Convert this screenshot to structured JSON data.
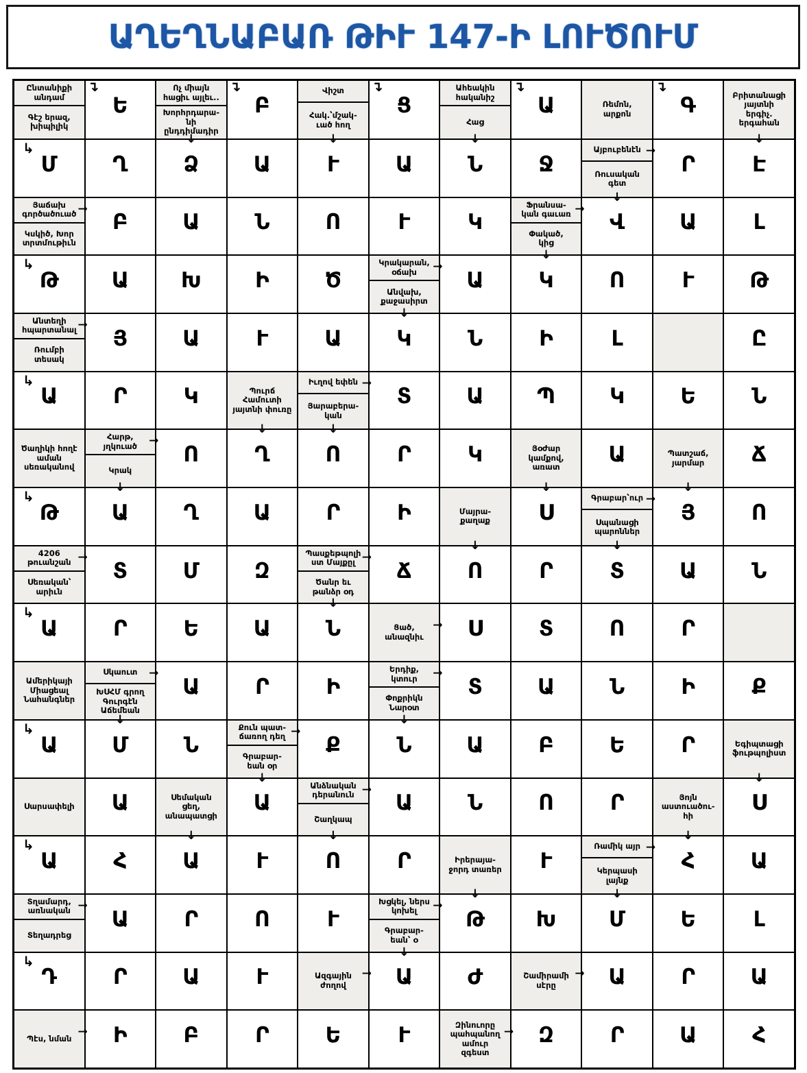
{
  "title": "ԱՂԵՂՆԱԲԱՌ ԹԻՒ 147-Ի ԼՈՒԾՈՒՄ",
  "colors": {
    "accent": "#1d56a4",
    "clue_bg": "#efeeeb",
    "grid_line": "#000000"
  },
  "icons": {
    "dn": "↓",
    "lt": "→",
    "lm": "→",
    "cr": "↳",
    "cd": "↴"
  },
  "grid": {
    "rows": 17,
    "cols": 11,
    "cells": [
      [
        {
          "t": "C2",
          "top": "Ընտանիքի\nանդամ",
          "bot": "Գէշ երազ,\nխիպիլիկ"
        },
        {
          "t": "L",
          "v": "Ե",
          "a": [
            "cd"
          ]
        },
        {
          "t": "C2",
          "top": "Ոչ միայն\nհացիւ այլեւ..",
          "bot": "Խորհրդարա-\nնի\nընդդիմադիր"
        },
        {
          "t": "L",
          "v": "Բ",
          "a": [
            "cd"
          ]
        },
        {
          "t": "C2",
          "top": "Վիշտ",
          "bot": "Հակ.՝մշակ-\nւած հող"
        },
        {
          "t": "L",
          "v": "Ց",
          "a": [
            "cd"
          ]
        },
        {
          "t": "C2",
          "top": "Ահեակին\nհականիշ",
          "bot": "Հաց"
        },
        {
          "t": "L",
          "v": "Ա",
          "a": [
            "cd"
          ]
        },
        {
          "t": "C1",
          "txt": "Ռեմոն,\nարքոն"
        },
        {
          "t": "L",
          "v": "Գ",
          "a": [
            "cd"
          ]
        },
        {
          "t": "C1",
          "txt": "Բրիտանացի\nյայտնի\nերգիչ.\nերգահան"
        }
      ],
      [
        {
          "t": "L",
          "v": "Մ",
          "a": [
            "cr"
          ]
        },
        {
          "t": "L",
          "v": "Ղ"
        },
        {
          "t": "L",
          "v": "Ձ",
          "a": [
            "dn"
          ]
        },
        {
          "t": "L",
          "v": "Ա"
        },
        {
          "t": "L",
          "v": "Ւ",
          "a": [
            "dn"
          ]
        },
        {
          "t": "L",
          "v": "Ա"
        },
        {
          "t": "L",
          "v": "Ն",
          "a": [
            "dn"
          ]
        },
        {
          "t": "L",
          "v": "Ջ"
        },
        {
          "t": "C2",
          "top": "Այբուբենէն",
          "bot": "Ռուսական\nգետ"
        },
        {
          "t": "L",
          "v": "Ր",
          "a": [
            "lt"
          ]
        },
        {
          "t": "L",
          "v": "Է",
          "a": [
            "dn"
          ]
        }
      ],
      [
        {
          "t": "C2",
          "top": "Յաճախ\nգործածուած",
          "bot": "Կսկիծ, Խոր\nտրտմութիւն"
        },
        {
          "t": "L",
          "v": "Բ",
          "a": [
            "lt"
          ]
        },
        {
          "t": "L",
          "v": "Ա"
        },
        {
          "t": "L",
          "v": "Ն"
        },
        {
          "t": "L",
          "v": "Ո"
        },
        {
          "t": "L",
          "v": "Ւ"
        },
        {
          "t": "L",
          "v": "Կ"
        },
        {
          "t": "C2",
          "top": "Ֆրանսա-\nկան գաւառ",
          "bot": "Փակած,\nկից"
        },
        {
          "t": "L",
          "v": "Վ",
          "a": [
            "lt",
            "dn"
          ]
        },
        {
          "t": "L",
          "v": "Ա"
        },
        {
          "t": "L",
          "v": "Լ"
        }
      ],
      [
        {
          "t": "L",
          "v": "Թ",
          "a": [
            "cr"
          ]
        },
        {
          "t": "L",
          "v": "Ա"
        },
        {
          "t": "L",
          "v": "Խ"
        },
        {
          "t": "L",
          "v": "Ի"
        },
        {
          "t": "L",
          "v": "Ծ"
        },
        {
          "t": "C2",
          "top": "Կրակարան,\nօճախ",
          "bot": "Անվախ,\nքաջասիրտ"
        },
        {
          "t": "L",
          "v": "Ա",
          "a": [
            "lt"
          ]
        },
        {
          "t": "L",
          "v": "Կ",
          "a": [
            "dn"
          ]
        },
        {
          "t": "L",
          "v": "Ո"
        },
        {
          "t": "L",
          "v": "Ւ"
        },
        {
          "t": "L",
          "v": "Թ"
        }
      ],
      [
        {
          "t": "C2",
          "top": "Անտեղի\nհպարտանալ",
          "bot": "Ռումբի\nտեսակ"
        },
        {
          "t": "L",
          "v": "Յ",
          "a": [
            "lt"
          ]
        },
        {
          "t": "L",
          "v": "Ա"
        },
        {
          "t": "L",
          "v": "Ւ"
        },
        {
          "t": "L",
          "v": "Ա"
        },
        {
          "t": "L",
          "v": "Կ",
          "a": [
            "dn"
          ]
        },
        {
          "t": "L",
          "v": "Ն"
        },
        {
          "t": "L",
          "v": "Ի"
        },
        {
          "t": "L",
          "v": "Լ"
        },
        {
          "t": "E"
        },
        {
          "t": "L",
          "v": "Ը"
        }
      ],
      [
        {
          "t": "L",
          "v": "Ա",
          "a": [
            "cr"
          ]
        },
        {
          "t": "L",
          "v": "Ր"
        },
        {
          "t": "L",
          "v": "Կ"
        },
        {
          "t": "C1",
          "txt": "Պուրճ\nՀամուտի\nյայտնի փուռը"
        },
        {
          "t": "C2",
          "top": "Իւղով եփեն",
          "bot": "Յարաբերա-\nկան"
        },
        {
          "t": "L",
          "v": "Տ",
          "a": [
            "lt"
          ]
        },
        {
          "t": "L",
          "v": "Ա"
        },
        {
          "t": "L",
          "v": "Պ"
        },
        {
          "t": "L",
          "v": "Կ"
        },
        {
          "t": "L",
          "v": "Ե"
        },
        {
          "t": "L",
          "v": "Ն"
        }
      ],
      [
        {
          "t": "C1",
          "txt": "Ծաղիկի հողէ\nաման\nսեռականով"
        },
        {
          "t": "C2",
          "top": "Հարթ,\nյղկուած",
          "bot": "Կրակ"
        },
        {
          "t": "L",
          "v": "Ո",
          "a": [
            "lt"
          ]
        },
        {
          "t": "L",
          "v": "Ղ",
          "a": [
            "dn"
          ]
        },
        {
          "t": "L",
          "v": "Ո",
          "a": [
            "dn"
          ]
        },
        {
          "t": "L",
          "v": "Ր"
        },
        {
          "t": "L",
          "v": "Կ"
        },
        {
          "t": "C1",
          "txt": "Յօժար\nկամքով,\nառատ"
        },
        {
          "t": "L",
          "v": "Ա"
        },
        {
          "t": "C1",
          "txt": "Պատշաճ,\nյարմար"
        },
        {
          "t": "L",
          "v": "Ճ"
        }
      ],
      [
        {
          "t": "L",
          "v": "Թ",
          "a": [
            "cr"
          ]
        },
        {
          "t": "L",
          "v": "Ա",
          "a": [
            "dn"
          ]
        },
        {
          "t": "L",
          "v": "Ղ"
        },
        {
          "t": "L",
          "v": "Ա"
        },
        {
          "t": "L",
          "v": "Ր"
        },
        {
          "t": "L",
          "v": "Ի"
        },
        {
          "t": "C1",
          "txt": "Մայրա-\nքաղաք"
        },
        {
          "t": "L",
          "v": "Ս",
          "a": [
            "dn"
          ]
        },
        {
          "t": "C2",
          "top": "Գրաբար՝ուր",
          "bot": "Սպանացի\nպարոններ"
        },
        {
          "t": "L",
          "v": "Յ",
          "a": [
            "lt",
            "dn"
          ]
        },
        {
          "t": "L",
          "v": "Ո"
        }
      ],
      [
        {
          "t": "C2",
          "top": "4206\nթուանշան",
          "bot": "Սեռական՝\nարիւն"
        },
        {
          "t": "L",
          "v": "Տ",
          "a": [
            "lt"
          ]
        },
        {
          "t": "L",
          "v": "Մ"
        },
        {
          "t": "L",
          "v": "Զ"
        },
        {
          "t": "C2",
          "top": "Պասքեթպոլի\nստ Մայքըլ",
          "bot": "Ծանր եւ\nթանձր օդ"
        },
        {
          "t": "L",
          "v": "Ճ",
          "a": [
            "lt"
          ]
        },
        {
          "t": "L",
          "v": "Ո",
          "a": [
            "dn"
          ]
        },
        {
          "t": "L",
          "v": "Ր"
        },
        {
          "t": "L",
          "v": "Տ",
          "a": [
            "dn"
          ]
        },
        {
          "t": "L",
          "v": "Ա"
        },
        {
          "t": "L",
          "v": "Ն"
        }
      ],
      [
        {
          "t": "L",
          "v": "Ա",
          "a": [
            "cr"
          ]
        },
        {
          "t": "L",
          "v": "Ր"
        },
        {
          "t": "L",
          "v": "Ե"
        },
        {
          "t": "L",
          "v": "Ա"
        },
        {
          "t": "L",
          "v": "Ն",
          "a": [
            "dn"
          ]
        },
        {
          "t": "C1",
          "txt": "Ցած,\nանազնիւ"
        },
        {
          "t": "L",
          "v": "Ս",
          "a": [
            "lm"
          ]
        },
        {
          "t": "L",
          "v": "Տ"
        },
        {
          "t": "L",
          "v": "Ո"
        },
        {
          "t": "L",
          "v": "Ր"
        },
        {
          "t": "E"
        }
      ],
      [
        {
          "t": "C1",
          "txt": "Ամերիկայի\nՄիացեալ\nՆահանգներ"
        },
        {
          "t": "C2",
          "top": "Սկաուտ",
          "bot": "ԽՍՀՄ գրող\nԳուրգէն\nԱճեմեան"
        },
        {
          "t": "L",
          "v": "Ա",
          "a": [
            "lt"
          ]
        },
        {
          "t": "L",
          "v": "Ր"
        },
        {
          "t": "L",
          "v": "Ի"
        },
        {
          "t": "C2",
          "top": "Երդիք,\nկտուր",
          "bot": "Փոքրիկն\nՆարօտ"
        },
        {
          "t": "L",
          "v": "Տ",
          "a": [
            "lt"
          ]
        },
        {
          "t": "L",
          "v": "Ա"
        },
        {
          "t": "L",
          "v": "Ն"
        },
        {
          "t": "L",
          "v": "Ի"
        },
        {
          "t": "L",
          "v": "Ք"
        }
      ],
      [
        {
          "t": "L",
          "v": "Ա",
          "a": [
            "cr"
          ]
        },
        {
          "t": "L",
          "v": "Մ",
          "a": [
            "dn"
          ]
        },
        {
          "t": "L",
          "v": "Ն"
        },
        {
          "t": "C2",
          "top": "Քուն պատ-\nճառող դեղ",
          "bot": "Գրաբար-\nեան օր"
        },
        {
          "t": "L",
          "v": "Ք",
          "a": [
            "lt"
          ]
        },
        {
          "t": "L",
          "v": "Ն",
          "a": [
            "dn"
          ]
        },
        {
          "t": "L",
          "v": "Ա"
        },
        {
          "t": "L",
          "v": "Բ"
        },
        {
          "t": "L",
          "v": "Ե"
        },
        {
          "t": "L",
          "v": "Ր"
        },
        {
          "t": "C1",
          "txt": "Եգիպտացի\nֆութպոլիստ"
        }
      ],
      [
        {
          "t": "C1",
          "txt": "Սարսափելի"
        },
        {
          "t": "L",
          "v": "Ա"
        },
        {
          "t": "C1",
          "txt": "Սեմական\nցեղ,\nանապատցի"
        },
        {
          "t": "L",
          "v": "Ա",
          "a": [
            "dn"
          ]
        },
        {
          "t": "C2",
          "top": "Անձնական\nդերանուն",
          "bot": "Շաղկապ"
        },
        {
          "t": "L",
          "v": "Ա",
          "a": [
            "lt"
          ]
        },
        {
          "t": "L",
          "v": "Ն"
        },
        {
          "t": "L",
          "v": "Ո"
        },
        {
          "t": "L",
          "v": "Ր"
        },
        {
          "t": "C1",
          "txt": "Յոյն\nաստուածու-\nհի"
        },
        {
          "t": "L",
          "v": "Ս",
          "a": [
            "dn"
          ]
        }
      ],
      [
        {
          "t": "L",
          "v": "Ա",
          "a": [
            "cr"
          ]
        },
        {
          "t": "L",
          "v": "Հ"
        },
        {
          "t": "L",
          "v": "Ա",
          "a": [
            "dn"
          ]
        },
        {
          "t": "L",
          "v": "Ւ"
        },
        {
          "t": "L",
          "v": "Ո",
          "a": [
            "dn"
          ]
        },
        {
          "t": "L",
          "v": "Ր"
        },
        {
          "t": "C1",
          "txt": "Իրերայա-\nջորդ տառեր"
        },
        {
          "t": "L",
          "v": "Ւ"
        },
        {
          "t": "C2",
          "top": "Ռամիկ այր",
          "bot": "Կերպասի\nլայնք"
        },
        {
          "t": "L",
          "v": "Հ",
          "a": [
            "lt",
            "dn"
          ]
        },
        {
          "t": "L",
          "v": "Ա"
        }
      ],
      [
        {
          "t": "C2",
          "top": "Տղամարդ,\nառնական",
          "bot": "Տեղադրեց"
        },
        {
          "t": "L",
          "v": "Ա",
          "a": [
            "lt"
          ]
        },
        {
          "t": "L",
          "v": "Ր"
        },
        {
          "t": "L",
          "v": "Ո"
        },
        {
          "t": "L",
          "v": "Ւ"
        },
        {
          "t": "C2",
          "top": "Խցկել, ներս\nկոխել",
          "bot": "Գրաբար-\nեան՝ օ"
        },
        {
          "t": "L",
          "v": "Թ",
          "a": [
            "lt",
            "dn"
          ]
        },
        {
          "t": "L",
          "v": "Խ"
        },
        {
          "t": "L",
          "v": "Մ",
          "a": [
            "dn"
          ]
        },
        {
          "t": "L",
          "v": "Ե"
        },
        {
          "t": "L",
          "v": "Լ"
        }
      ],
      [
        {
          "t": "L",
          "v": "Դ",
          "a": [
            "cr"
          ]
        },
        {
          "t": "L",
          "v": "Ր"
        },
        {
          "t": "L",
          "v": "Ա"
        },
        {
          "t": "L",
          "v": "Ւ"
        },
        {
          "t": "C1",
          "txt": "Ազգային\nժողով"
        },
        {
          "t": "L",
          "v": "Ա",
          "a": [
            "lm",
            "dn"
          ]
        },
        {
          "t": "L",
          "v": "Ժ"
        },
        {
          "t": "C1",
          "txt": "Շամիրամի\nսէրը"
        },
        {
          "t": "L",
          "v": "Ա",
          "a": [
            "lm"
          ]
        },
        {
          "t": "L",
          "v": "Ր"
        },
        {
          "t": "L",
          "v": "Ա"
        }
      ],
      [
        {
          "t": "C1",
          "txt": "Պէս, նման"
        },
        {
          "t": "L",
          "v": "Ի",
          "a": [
            "lm"
          ]
        },
        {
          "t": "L",
          "v": "Բ"
        },
        {
          "t": "L",
          "v": "Ր"
        },
        {
          "t": "L",
          "v": "Ե"
        },
        {
          "t": "L",
          "v": "Ւ"
        },
        {
          "t": "C1",
          "txt": "Զինուորը\nպահպանող\nամուր\nզգեստ"
        },
        {
          "t": "L",
          "v": "Զ",
          "a": [
            "lm"
          ]
        },
        {
          "t": "L",
          "v": "Ր"
        },
        {
          "t": "L",
          "v": "Ա"
        },
        {
          "t": "L",
          "v": "Հ"
        }
      ]
    ]
  }
}
